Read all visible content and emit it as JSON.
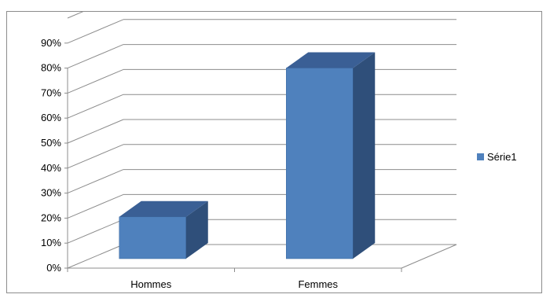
{
  "chart_data": {
    "type": "bar",
    "categories": [
      "Hommes",
      "Femmes"
    ],
    "series": [
      {
        "name": "Série1",
        "values": [
          18,
          82
        ],
        "color": "#4f81bd"
      }
    ],
    "ylim": [
      0,
      100
    ],
    "yticks": [
      "0%",
      "10%",
      "20%",
      "30%",
      "40%",
      "50%",
      "60%",
      "70%",
      "80%",
      "90%"
    ],
    "grid": true,
    "three_d": true,
    "legend": "right",
    "title": "",
    "xlabel": "",
    "ylabel": ""
  }
}
